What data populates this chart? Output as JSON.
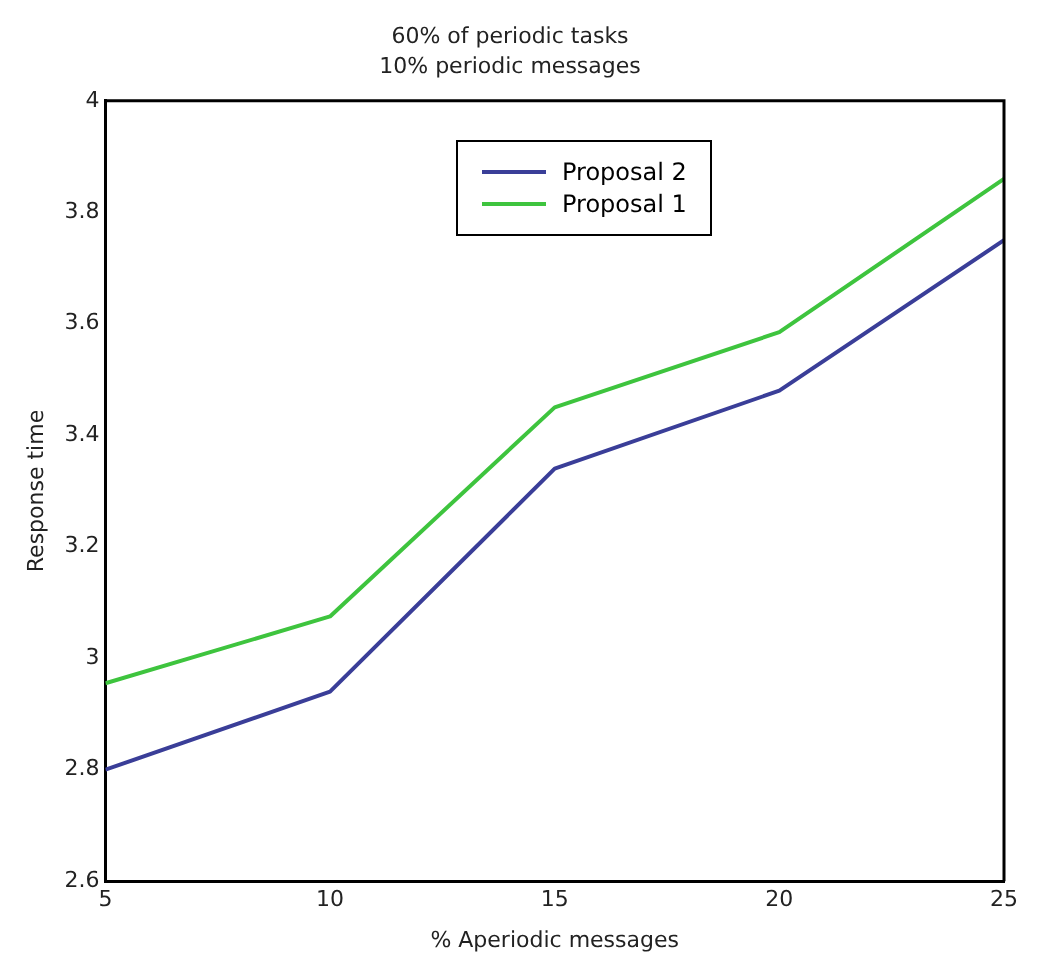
{
  "chart_data": {
    "type": "line",
    "title": "60% of periodic tasks",
    "subtitle": "10% periodic messages",
    "xlabel": "% Aperiodic messages",
    "ylabel": "Response time",
    "x": [
      5,
      10,
      15,
      20,
      25
    ],
    "series": [
      {
        "name": "Proposal  2",
        "color": "#3a3e98",
        "values": [
          2.8,
          2.94,
          3.34,
          3.48,
          3.75
        ]
      },
      {
        "name": "Proposal 1",
        "color": "#3ec43e",
        "values": [
          2.955,
          3.075,
          3.45,
          3.585,
          3.86
        ]
      }
    ],
    "xlim": [
      5,
      25
    ],
    "xticks": [
      5,
      10,
      15,
      20,
      25
    ],
    "ylim": [
      2.6,
      4
    ],
    "yticks": [
      2.6,
      2.8,
      3,
      3.2,
      3.4,
      3.6,
      3.8,
      4
    ],
    "grid": false,
    "legend": "top",
    "marker": "none",
    "line_style": "solid"
  }
}
